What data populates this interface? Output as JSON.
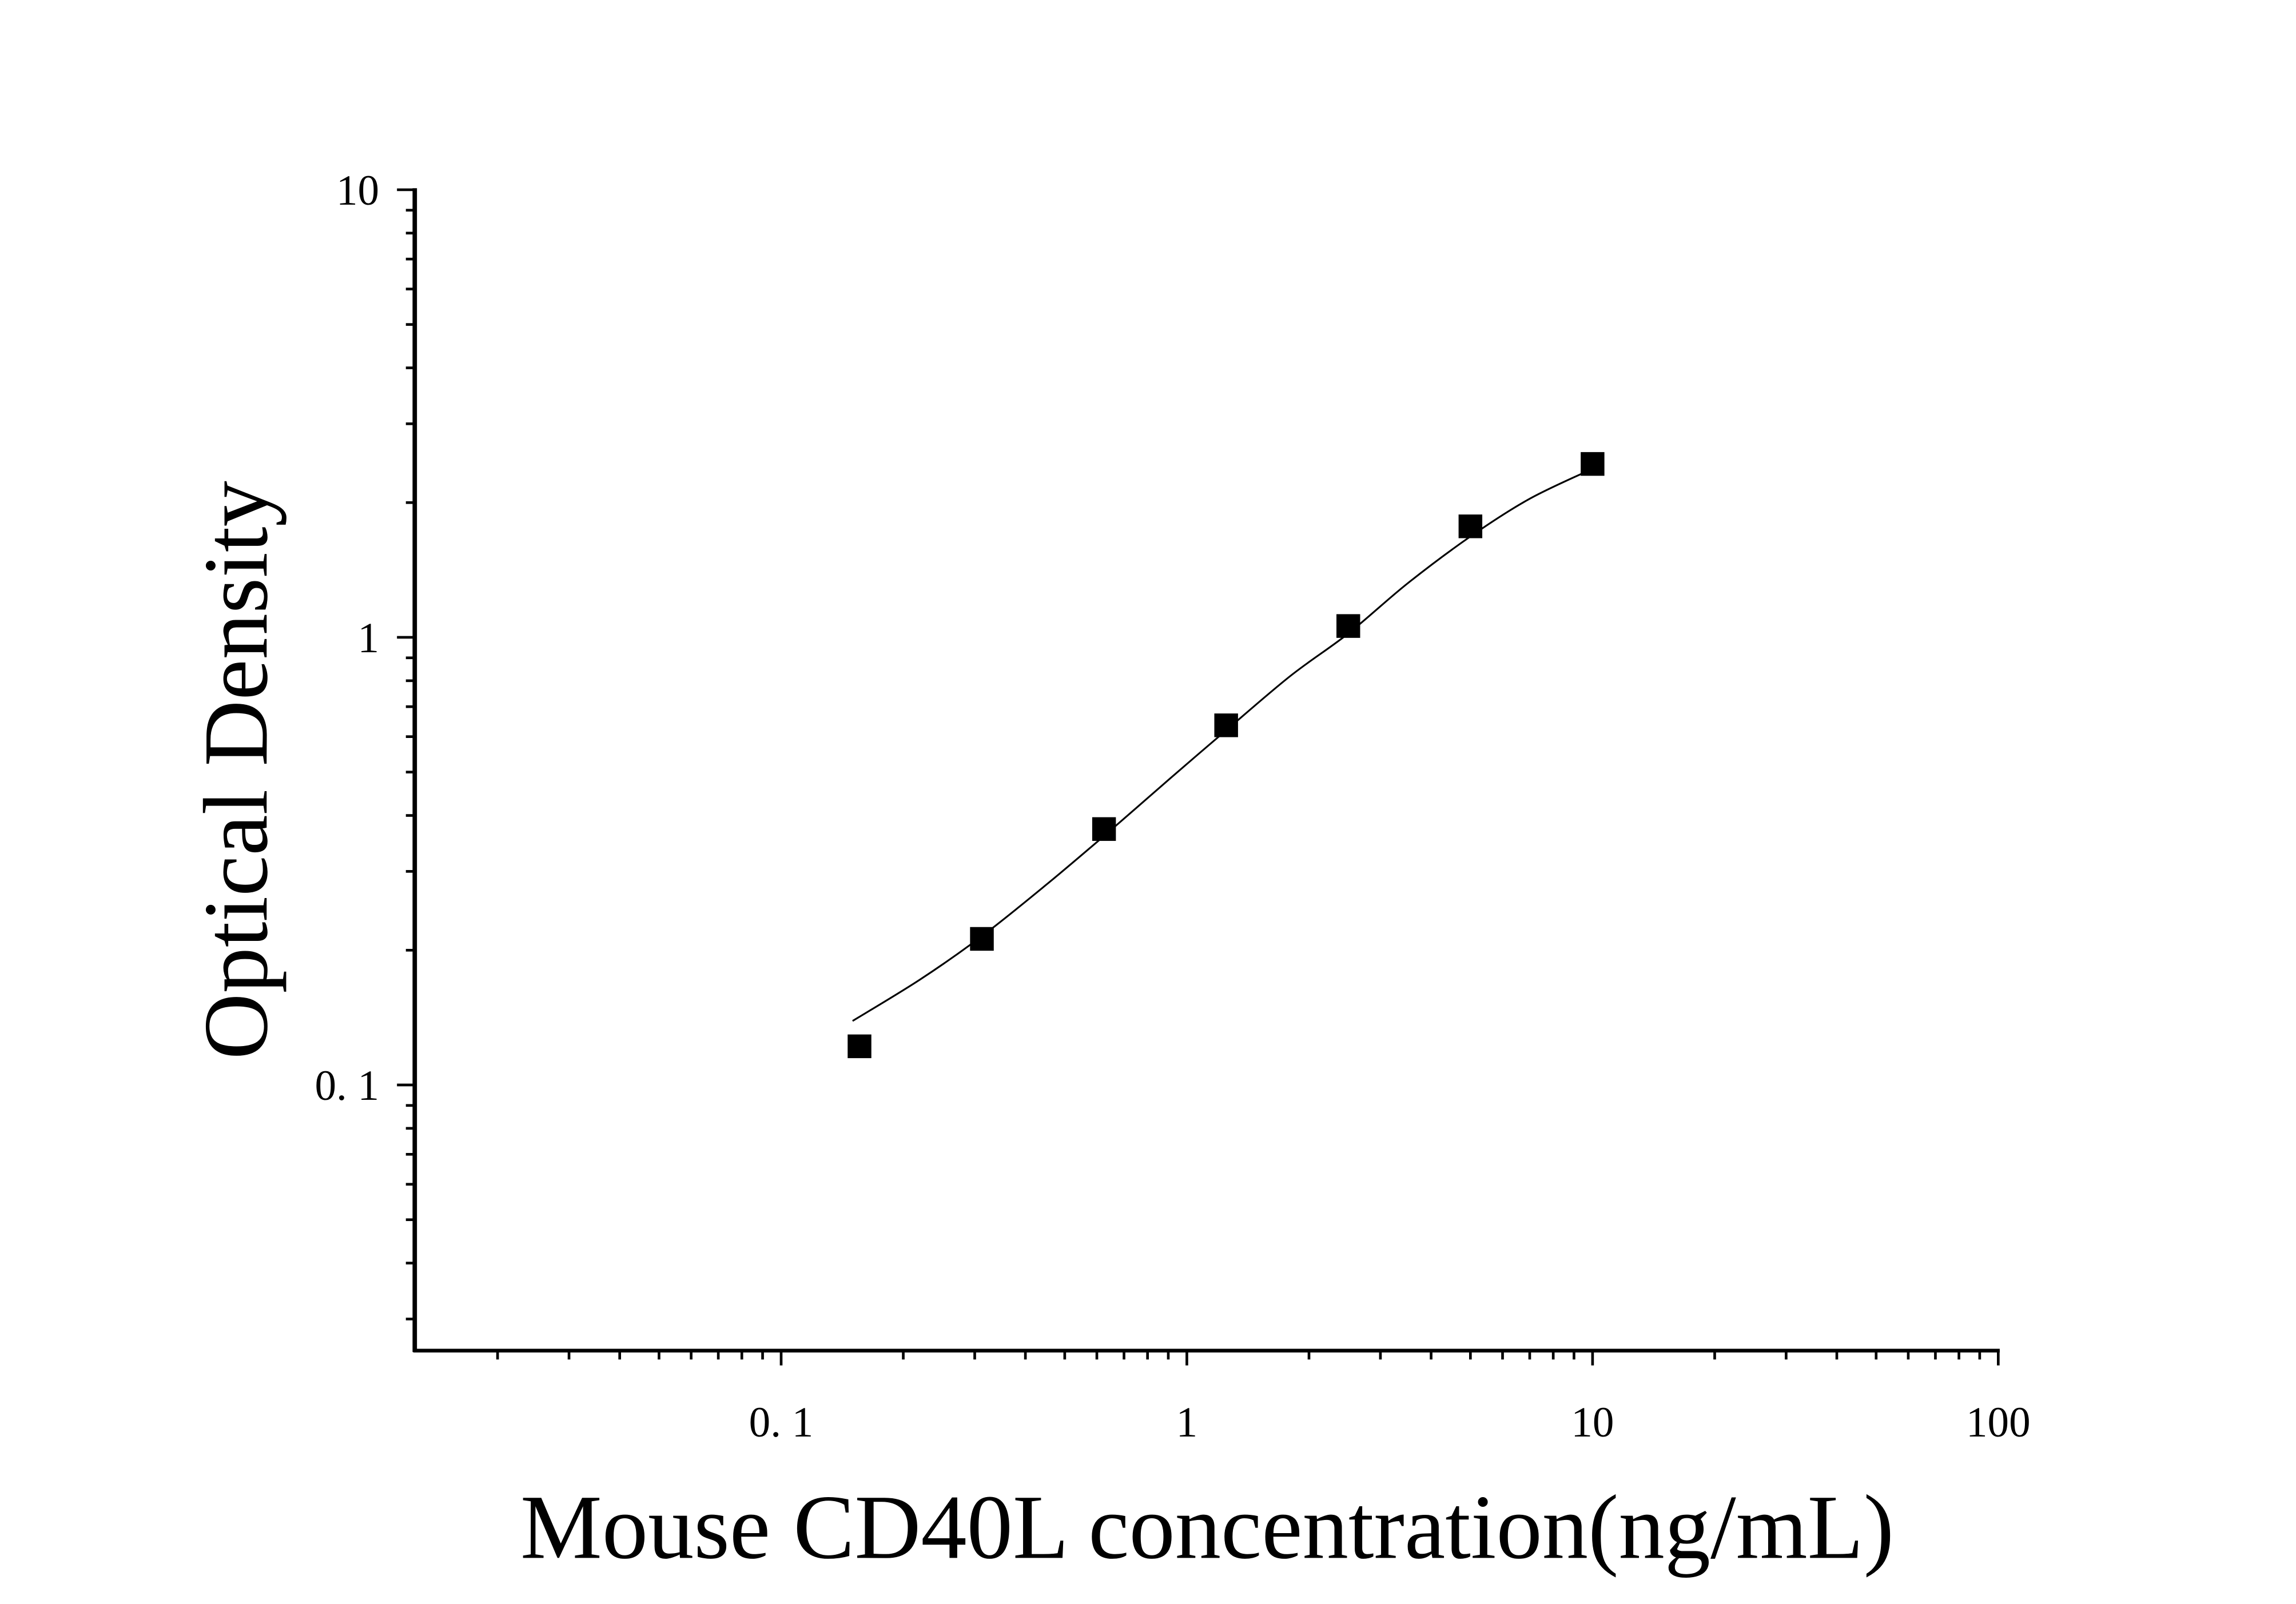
{
  "chart_data": {
    "type": "scatter",
    "title": "",
    "xlabel": "Mouse CD40L concentration(ng/mL)",
    "ylabel": "Optical Density",
    "x_scale": "log",
    "y_scale": "log",
    "xlim": [
      0.0125,
      100
    ],
    "ylim": [
      0.0255,
      10
    ],
    "x_ticks": [
      {
        "value": 0.1,
        "label": "0. 1"
      },
      {
        "value": 1,
        "label": "1"
      },
      {
        "value": 10,
        "label": "10"
      },
      {
        "value": 100,
        "label": "100"
      }
    ],
    "y_ticks": [
      {
        "value": 0.1,
        "label": "0. 1"
      },
      {
        "value": 1,
        "label": "1"
      },
      {
        "value": 10,
        "label": "10"
      }
    ],
    "grid": false,
    "legend": "none",
    "series": [
      {
        "type": "scatter",
        "marker": "square",
        "color": "#000000",
        "x": [
          0.156,
          0.3125,
          0.625,
          1.25,
          2.5,
          5,
          10
        ],
        "y": [
          0.122,
          0.212,
          0.373,
          0.636,
          1.06,
          1.77,
          2.44
        ]
      },
      {
        "type": "line",
        "color": "#000000",
        "x": [
          0.15,
          0.22,
          0.3125,
          0.45,
          0.625,
          0.9,
          1.25,
          1.8,
          2.5,
          3.5,
          5,
          7,
          10
        ],
        "y": [
          0.139,
          0.172,
          0.215,
          0.28,
          0.36,
          0.48,
          0.62,
          0.82,
          1.02,
          1.32,
          1.68,
          2.04,
          2.38
        ]
      }
    ]
  }
}
